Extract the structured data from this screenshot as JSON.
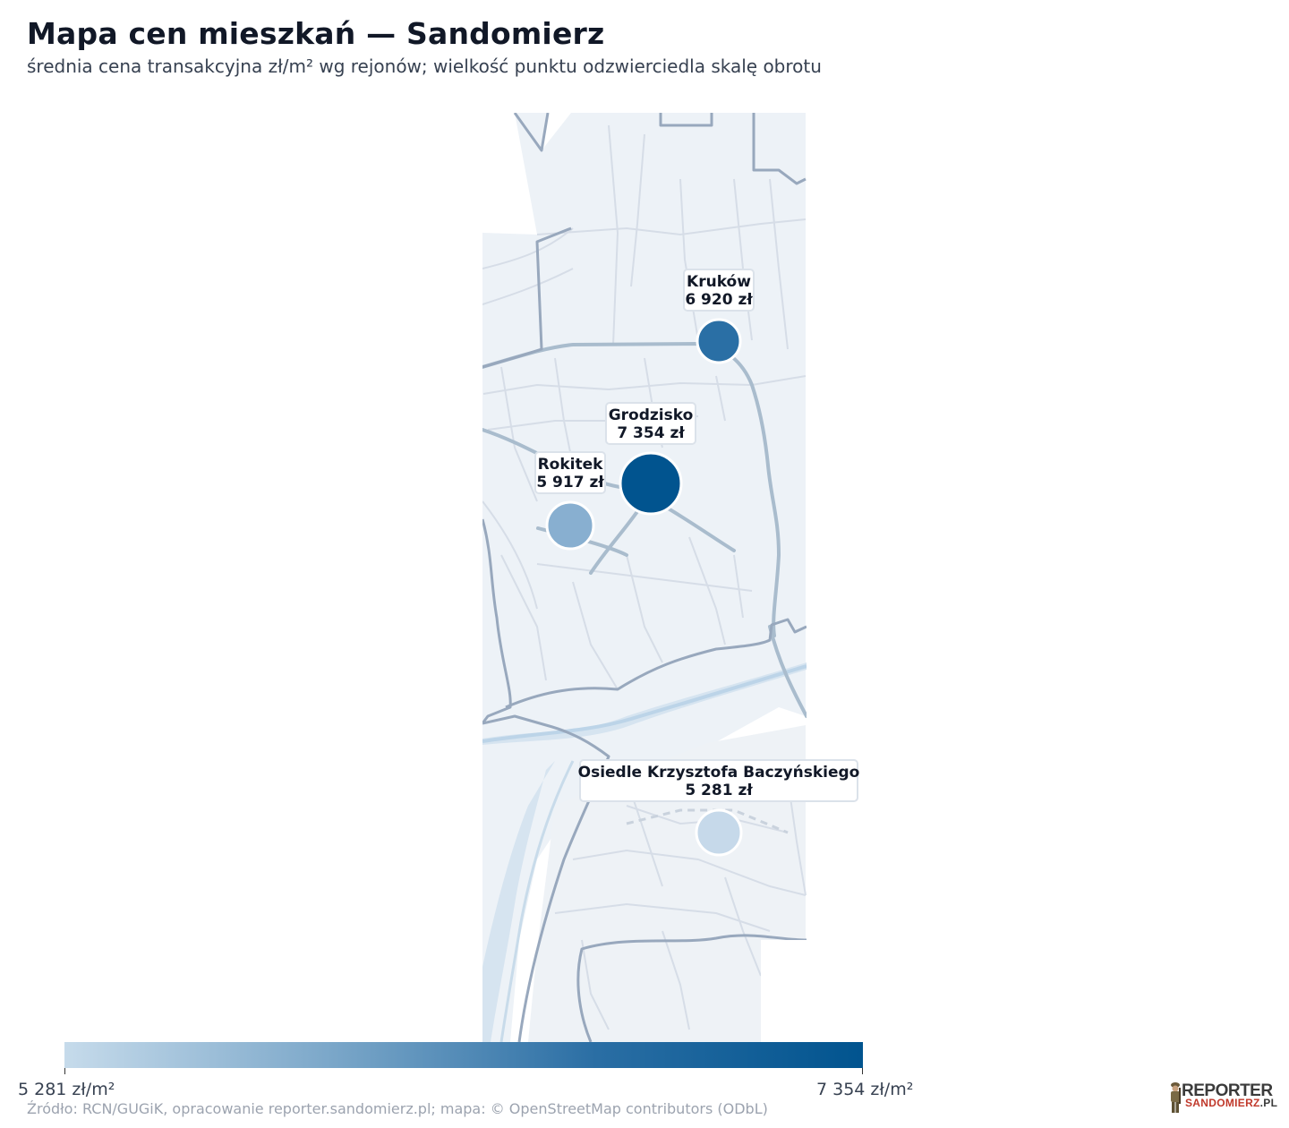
{
  "title": "Mapa cen mieszkań — Sandomierz",
  "subtitle": "średnia cena transakcyjna zł/m² wg rejonów; wielkość punktu odzwierciedla skalę obrotu",
  "districts": [
    {
      "name": "Kruków",
      "price": "6 920 zł",
      "value": 6920,
      "color": "#2a6fa5"
    },
    {
      "name": "Grodzisko",
      "price": "7 354 zł",
      "value": 7354,
      "color": "#01548f"
    },
    {
      "name": "Rokitek",
      "price": "5 917 zł",
      "value": 5917,
      "color": "#88afd0"
    },
    {
      "name": "Osiedle Krzysztofa Baczyńskiego",
      "price": "5 281 zł",
      "value": 5281,
      "color": "#c6d9ea"
    }
  ],
  "colorbar": {
    "min_label": "5 281 zł/m²",
    "max_label": "7 354 zł/m²",
    "min_color": "#c6dbeb",
    "max_color": "#01548f"
  },
  "source": "Źródło: RCN/GUGiK, opracowanie reporter.sandomierz.pl; mapa: © OpenStreetMap contributors (ODbL)",
  "logo": {
    "text_top": "REPORTER",
    "text_bottom": "SANDOMIERZ",
    "text_suffix": ".PL"
  }
}
